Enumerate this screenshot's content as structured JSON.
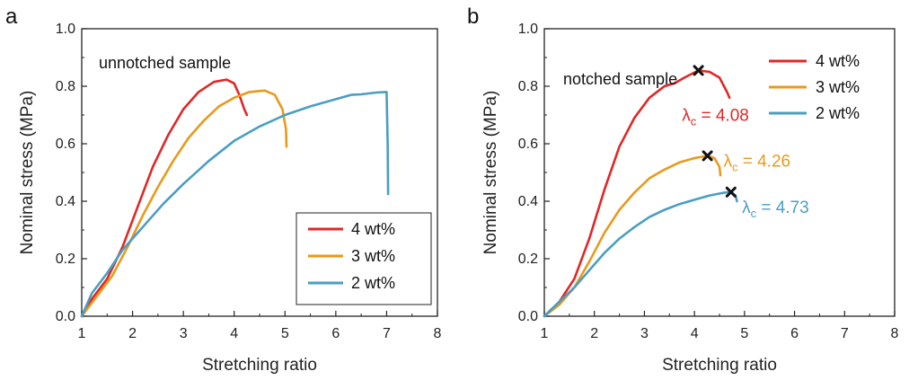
{
  "colors": {
    "4 wt%": "#e02727",
    "3 wt%": "#e89a1b",
    "2 wt%": "#4a9ec3"
  },
  "chart_data": [
    {
      "panel": "a",
      "type": "line",
      "sample_label": "unnotched sample",
      "xlabel": "Stretching ratio",
      "ylabel": "Nominal stress (MPa)",
      "xlim": [
        1,
        8
      ],
      "ylim": [
        0,
        1.0
      ],
      "xticks": [
        "1",
        "2",
        "3",
        "4",
        "5",
        "6",
        "7",
        "8"
      ],
      "yticks": [
        "0.0",
        "0.2",
        "0.4",
        "0.6",
        "0.8",
        "1.0"
      ],
      "legend_position": "bottom-right",
      "legend_box": true,
      "series": [
        {
          "name": "4 wt%",
          "color": "#e02727",
          "x": [
            1.0,
            1.2,
            1.5,
            1.8,
            2.1,
            2.4,
            2.7,
            3.0,
            3.3,
            3.6,
            3.85,
            4.0,
            4.1,
            4.2,
            4.25
          ],
          "y": [
            0.0,
            0.06,
            0.13,
            0.24,
            0.38,
            0.52,
            0.63,
            0.72,
            0.78,
            0.815,
            0.823,
            0.81,
            0.77,
            0.72,
            0.7
          ]
        },
        {
          "name": "3 wt%",
          "color": "#e89a1b",
          "x": [
            1.0,
            1.3,
            1.6,
            1.9,
            2.2,
            2.5,
            2.8,
            3.1,
            3.4,
            3.7,
            4.0,
            4.3,
            4.6,
            4.8,
            4.95,
            5.02,
            5.03
          ],
          "y": [
            0.0,
            0.07,
            0.14,
            0.24,
            0.35,
            0.45,
            0.54,
            0.62,
            0.68,
            0.73,
            0.76,
            0.78,
            0.785,
            0.77,
            0.72,
            0.65,
            0.59
          ]
        },
        {
          "name": "2 wt%",
          "color": "#4a9ec3",
          "x": [
            1.0,
            1.2,
            1.5,
            1.8,
            2.2,
            2.6,
            3.0,
            3.5,
            4.0,
            4.5,
            5.0,
            5.5,
            6.0,
            6.3,
            6.5,
            6.8,
            7.0,
            7.02,
            7.03
          ],
          "y": [
            0.0,
            0.08,
            0.15,
            0.23,
            0.31,
            0.39,
            0.46,
            0.54,
            0.61,
            0.66,
            0.7,
            0.73,
            0.755,
            0.77,
            0.772,
            0.778,
            0.78,
            0.6,
            0.425
          ]
        }
      ]
    },
    {
      "panel": "b",
      "type": "line",
      "sample_label": "notched sample",
      "xlabel": "Stretching ratio",
      "ylabel": "Nominal stress (MPa)",
      "xlim": [
        1,
        8
      ],
      "ylim": [
        0,
        1.0
      ],
      "xticks": [
        "1",
        "2",
        "3",
        "4",
        "5",
        "6",
        "7",
        "8"
      ],
      "yticks": [
        "0.0",
        "0.2",
        "0.4",
        "0.6",
        "0.8",
        "1.0"
      ],
      "legend_position": "top-right",
      "legend_box": false,
      "series": [
        {
          "name": "4 wt%",
          "color": "#e02727",
          "x": [
            1.0,
            1.3,
            1.6,
            1.9,
            2.2,
            2.5,
            2.8,
            3.1,
            3.4,
            3.6,
            3.8,
            4.08,
            4.3,
            4.5,
            4.65,
            4.7
          ],
          "y": [
            0.0,
            0.05,
            0.13,
            0.27,
            0.44,
            0.59,
            0.69,
            0.76,
            0.8,
            0.81,
            0.83,
            0.855,
            0.85,
            0.83,
            0.78,
            0.76
          ]
        },
        {
          "name": "3 wt%",
          "color": "#e89a1b",
          "x": [
            1.0,
            1.3,
            1.6,
            1.9,
            2.2,
            2.5,
            2.8,
            3.1,
            3.4,
            3.7,
            4.0,
            4.26,
            4.4,
            4.5,
            4.52
          ],
          "y": [
            0.0,
            0.04,
            0.1,
            0.19,
            0.29,
            0.37,
            0.43,
            0.48,
            0.51,
            0.535,
            0.55,
            0.558,
            0.55,
            0.52,
            0.49
          ]
        },
        {
          "name": "2 wt%",
          "color": "#4a9ec3",
          "x": [
            1.0,
            1.3,
            1.6,
            1.9,
            2.2,
            2.5,
            2.8,
            3.1,
            3.4,
            3.7,
            4.0,
            4.3,
            4.6,
            4.73,
            4.82,
            4.85
          ],
          "y": [
            0.0,
            0.05,
            0.1,
            0.16,
            0.22,
            0.27,
            0.31,
            0.345,
            0.37,
            0.39,
            0.405,
            0.42,
            0.43,
            0.432,
            0.42,
            0.4
          ]
        }
      ],
      "critical_points": [
        {
          "x": 4.08,
          "y": 0.855,
          "series": "4 wt%",
          "label": "λ",
          "sub": "c",
          "text": " = 4.08",
          "label_x": 3.75,
          "label_y": 0.68
        },
        {
          "x": 4.26,
          "y": 0.558,
          "series": "3 wt%",
          "label": "λ",
          "sub": "c",
          "text": " = 4.26",
          "label_x": 4.58,
          "label_y": 0.52
        },
        {
          "x": 4.73,
          "y": 0.432,
          "series": "2 wt%",
          "label": "λ",
          "sub": "c",
          "text": " = 4.73",
          "label_x": 4.95,
          "label_y": 0.36
        }
      ]
    }
  ]
}
